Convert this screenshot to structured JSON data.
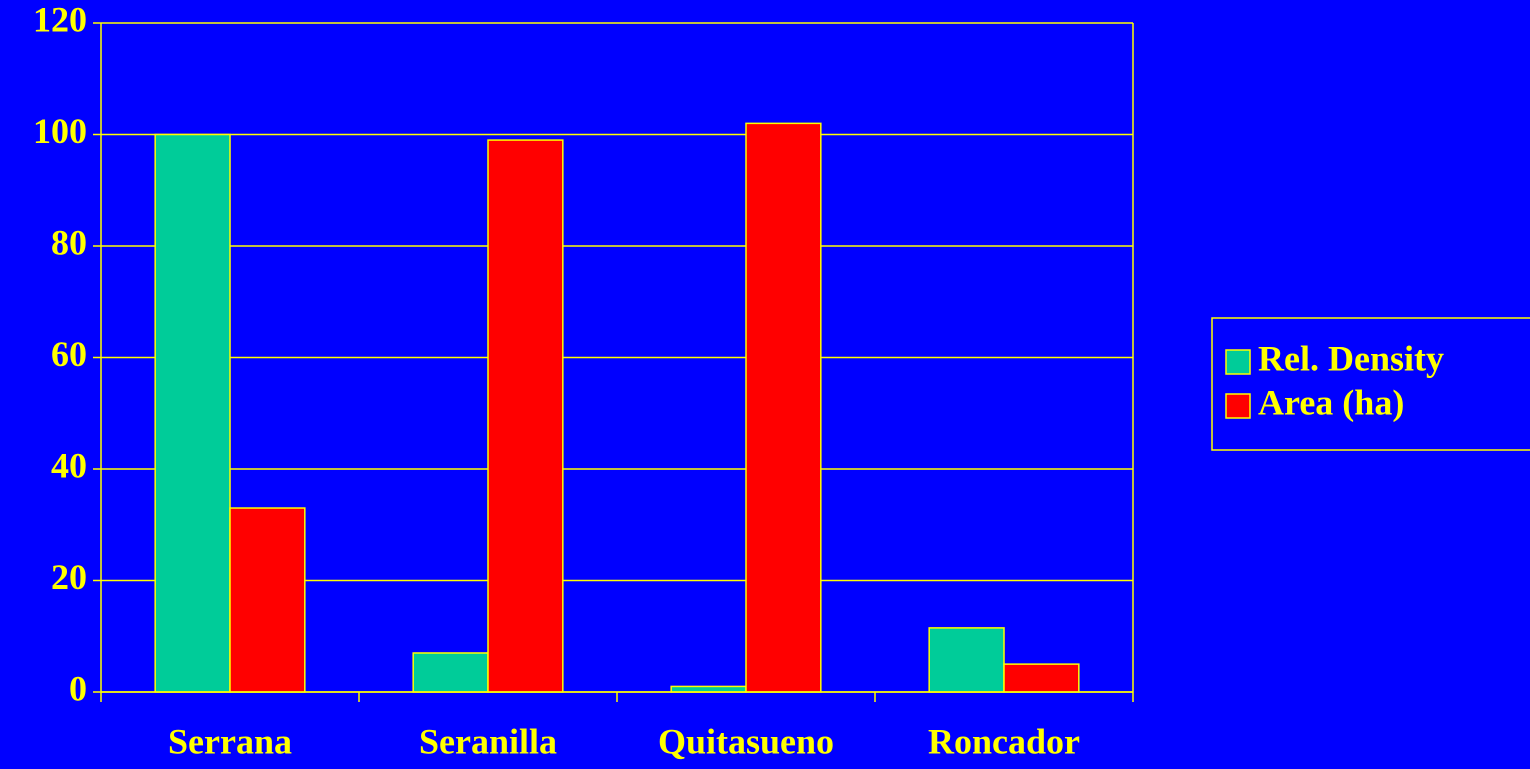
{
  "chart_data": {
    "type": "bar",
    "categories": [
      "Serrana",
      "Seranilla",
      "Quitasueno",
      "Roncador"
    ],
    "series": [
      {
        "name": "Rel. Density",
        "color": "#00cc99",
        "values": [
          100,
          7,
          1,
          11.5
        ]
      },
      {
        "name": "Area (ha)",
        "color": "#ff0000",
        "values": [
          33,
          99,
          102,
          5
        ]
      }
    ],
    "ylim": [
      0,
      120
    ],
    "yticks": [
      0,
      20,
      40,
      60,
      80,
      100,
      120
    ],
    "grid": true,
    "legend": "right"
  }
}
